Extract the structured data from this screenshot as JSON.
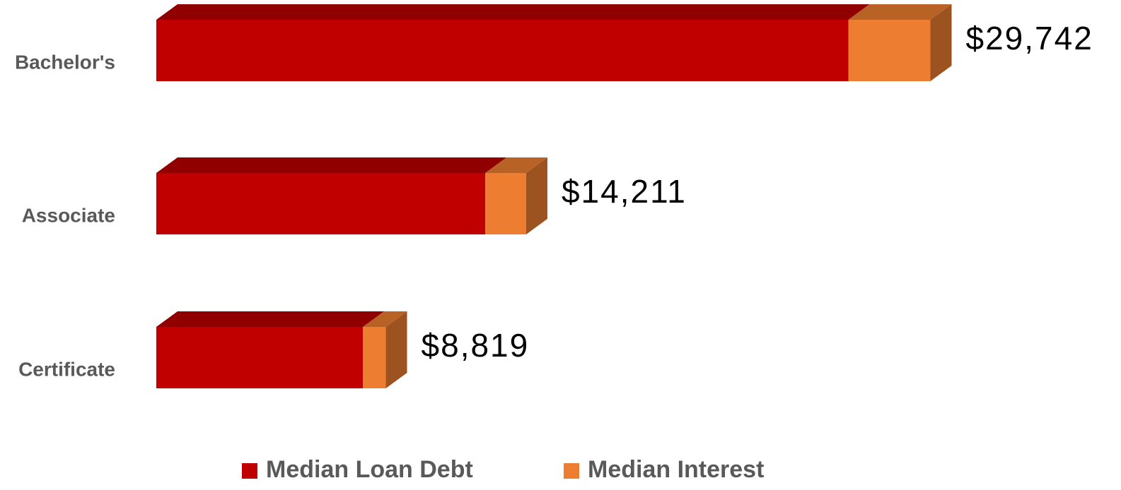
{
  "chart_data": {
    "type": "bar3d_stacked_horizontal",
    "categories": [
      "Bachelor's",
      "Associate",
      "Certificate"
    ],
    "series": [
      {
        "name": "Median Loan Debt",
        "color": "#c00000",
        "values": [
          26590,
          12643,
          7939
        ]
      },
      {
        "name": "Median Interest",
        "color": "#ed7d31",
        "values": [
          3152,
          1568,
          880
        ]
      }
    ],
    "totals": [
      29742,
      14211,
      8819
    ],
    "total_labels": [
      "$29,742",
      "$14,211",
      "$8,819"
    ],
    "xlim": [
      0,
      30000
    ],
    "legend": "bottom"
  }
}
